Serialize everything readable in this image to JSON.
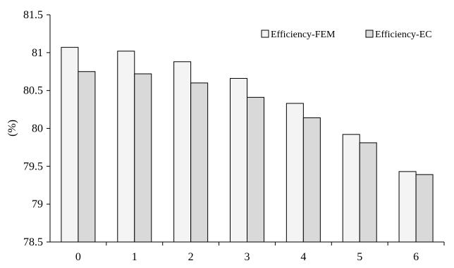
{
  "chart_data": {
    "type": "bar",
    "categories": [
      "0",
      "1",
      "2",
      "3",
      "4",
      "5",
      "6"
    ],
    "series": [
      {
        "name": "Efficiency-FEM",
        "values": [
          81.07,
          81.02,
          80.88,
          80.66,
          80.33,
          79.92,
          79.43
        ],
        "color": "#f4f4f4"
      },
      {
        "name": "Efficiency-EC",
        "values": [
          80.75,
          80.72,
          80.6,
          80.41,
          80.14,
          79.81,
          79.39
        ],
        "color": "#d9d9d9"
      }
    ],
    "xlabel": "",
    "ylabel": "(%)",
    "ylim": [
      78.5,
      81.5
    ],
    "yticks": [
      "78.5",
      "79",
      "79.5",
      "80",
      "80.5",
      "81",
      "81.5"
    ],
    "grid": false,
    "legend_position": "top-right",
    "bar_edge_color": "#000000"
  }
}
